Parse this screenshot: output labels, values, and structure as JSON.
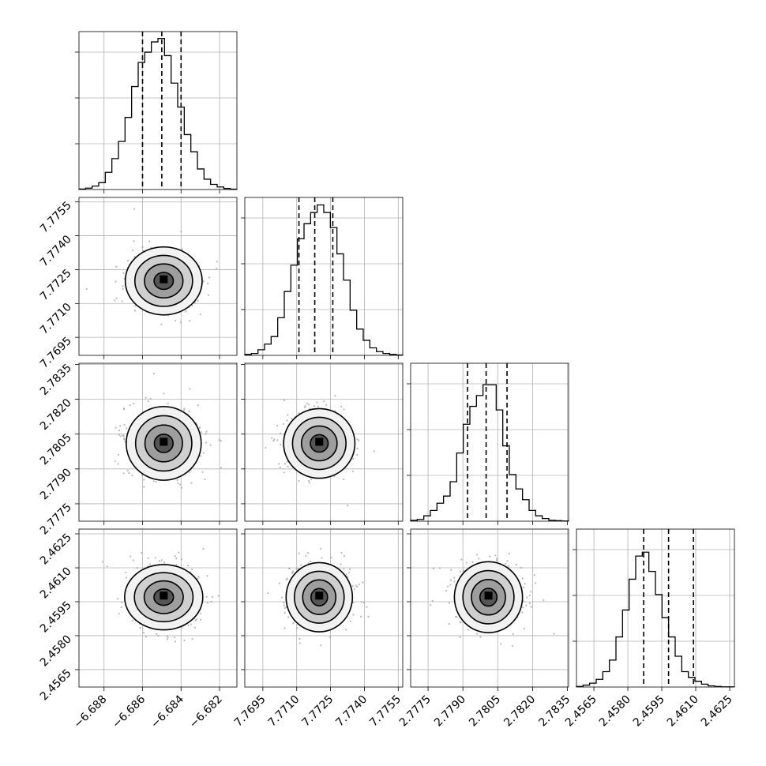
{
  "chart_data": {
    "type": "corner",
    "parameters": [
      {
        "xlim": [
          -6.6893,
          -6.6811
        ],
        "ticks": [
          "-6.688",
          "-6.686",
          "-6.684",
          "-6.682"
        ],
        "tick_values": [
          -6.688,
          -6.686,
          -6.684,
          -6.682
        ],
        "quantiles": [
          -6.686,
          -6.685,
          -6.684
        ],
        "hist_values": [
          0.3,
          0.8,
          2,
          4,
          10,
          18,
          28,
          42,
          60,
          74,
          80,
          86,
          88,
          78,
          62,
          48,
          32,
          22,
          12,
          6,
          3,
          1.5,
          0.6,
          0.2
        ],
        "hist_max": 92
      },
      {
        "xlim": [
          7.7687,
          7.7757
        ],
        "ticks": [
          "7.7695",
          "7.7710",
          "7.7725",
          "7.7740",
          "7.7755"
        ],
        "tick_values": [
          7.7695,
          7.771,
          7.7725,
          7.774,
          7.7755
        ],
        "quantiles": [
          7.7711,
          7.7718,
          7.7726
        ],
        "hist_values": [
          0.5,
          1,
          3,
          6,
          10,
          20,
          34,
          48,
          62,
          70,
          76,
          80,
          76,
          68,
          54,
          40,
          24,
          14,
          8,
          4,
          2,
          1,
          0.5,
          0.2
        ],
        "hist_max": 84
      },
      {
        "xlim": [
          2.77675,
          2.78355
        ],
        "ticks": [
          "2.7775",
          "2.7790",
          "2.7805",
          "2.7820",
          "2.7835"
        ],
        "tick_values": [
          2.7775,
          2.779,
          2.7805,
          2.782,
          2.7835
        ],
        "quantiles": [
          2.7792,
          2.78,
          2.7809
        ],
        "hist_values": [
          0.5,
          1,
          3,
          6,
          10,
          14,
          22,
          38,
          54,
          64,
          70,
          76,
          76,
          62,
          42,
          26,
          18,
          12,
          6,
          3,
          1.5,
          0.5,
          0.3,
          0.1
        ],
        "hist_max": 88
      },
      {
        "xlim": [
          2.45573,
          2.46271
        ],
        "ticks": [
          "2.4565",
          "2.4580",
          "2.4595",
          "2.4610",
          "2.4625"
        ],
        "tick_values": [
          2.4565,
          2.458,
          2.4595,
          2.461,
          2.4625
        ],
        "quantiles": [
          2.4587,
          2.4598,
          2.4609
        ],
        "hist_values": [
          0.3,
          1,
          2,
          4,
          8,
          14,
          26,
          40,
          56,
          68,
          70,
          60,
          48,
          36,
          26,
          16,
          8,
          5,
          3,
          1.5,
          0.6,
          0.3,
          0.1,
          0.1
        ],
        "hist_max": 82
      }
    ],
    "center": [
      -6.6849,
      7.772,
      2.7801,
      2.4597
    ],
    "spread": [
      0.00099,
      0.00076,
      0.00078,
      0.00074
    ],
    "contour_levels_sigma": [
      0.5,
      1.0,
      1.5,
      2.0
    ],
    "xlabels": [
      "",
      "",
      "",
      ""
    ],
    "ylabels": [
      "",
      "",
      "",
      ""
    ],
    "grid": true
  }
}
